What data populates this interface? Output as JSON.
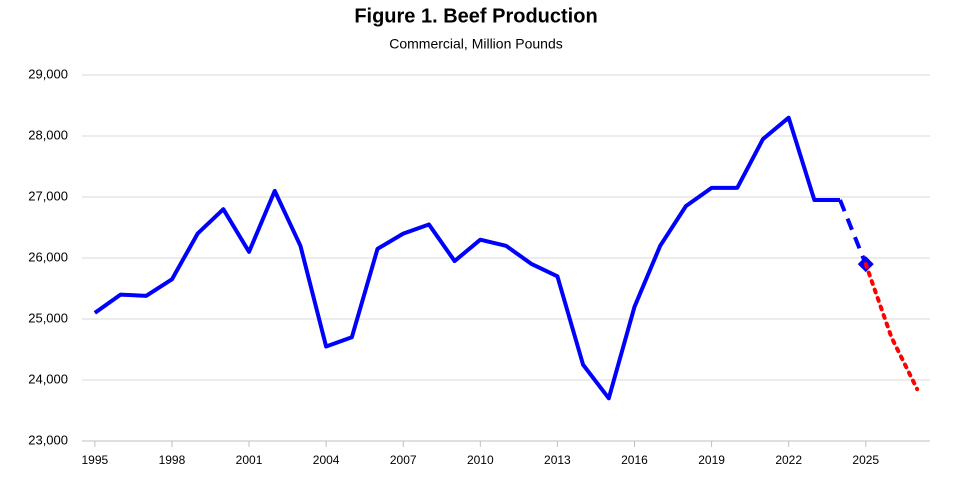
{
  "chart_data": {
    "type": "line",
    "title": "Figure 1. Beef Production",
    "subtitle": "Commercial, Million Pounds",
    "xlim": [
      1994.5,
      2027.5
    ],
    "xticks": [
      1995,
      1998,
      2001,
      2004,
      2007,
      2010,
      2013,
      2016,
      2019,
      2022,
      2025
    ],
    "ylim": [
      23000,
      29000
    ],
    "yticks": [
      {
        "value": 23000,
        "label": "23,000"
      },
      {
        "value": 24000,
        "label": "24,000"
      },
      {
        "value": 25000,
        "label": "25,000"
      },
      {
        "value": 26000,
        "label": "26,000"
      },
      {
        "value": 27000,
        "label": "27,000"
      },
      {
        "value": 28000,
        "label": "28,000"
      },
      {
        "value": 29000,
        "label": "29,000"
      }
    ],
    "grid": true,
    "series": [
      {
        "color": "#0000ff",
        "style": "solid",
        "x": [
          1995,
          1996,
          1997,
          1998,
          1999,
          2000,
          2001,
          2002,
          2003,
          2004,
          2005,
          2006,
          2007,
          2008,
          2009,
          2010,
          2011,
          2012,
          2013,
          2014,
          2015,
          2016,
          2017,
          2018,
          2019,
          2020,
          2021,
          2022,
          2023,
          2024
        ],
        "values": [
          25100,
          25400,
          25380,
          25650,
          26400,
          26800,
          26100,
          27100,
          26200,
          24550,
          24700,
          26150,
          26400,
          26550,
          25950,
          26300,
          26200,
          25900,
          25700,
          24250,
          23700,
          25200,
          26200,
          26850,
          27150,
          27150,
          27950,
          28300,
          26950,
          26950
        ]
      },
      {
        "color": "#0000ff",
        "style": "dashed",
        "marker": "diamond",
        "x": [
          2024,
          2025
        ],
        "values": [
          26950,
          25900
        ]
      },
      {
        "color": "#ff0000",
        "style": "dotted",
        "x": [
          2025,
          2026,
          2027
        ],
        "values": [
          25900,
          24700,
          23850
        ]
      }
    ]
  }
}
